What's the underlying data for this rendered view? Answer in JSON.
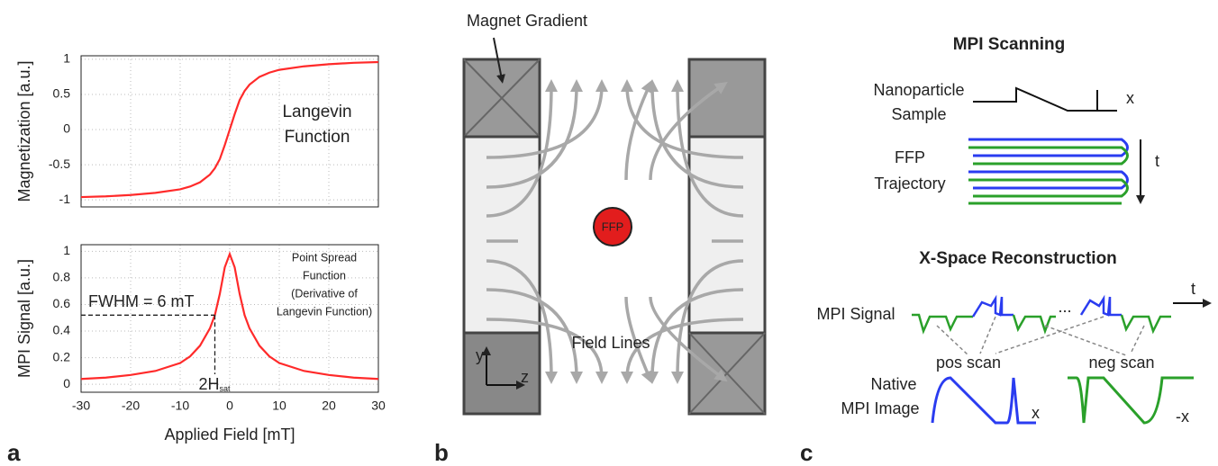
{
  "panel_labels": [
    "a",
    "b",
    "c"
  ],
  "chart_data": [
    {
      "type": "line",
      "ylabel": "Magnetization [a.u.]",
      "annotation": [
        "Langevin",
        "Function"
      ],
      "x": [
        -30,
        -25,
        -20,
        -15,
        -10,
        -8,
        -6,
        -4,
        -3,
        -2,
        -1,
        0,
        1,
        2,
        3,
        4,
        6,
        8,
        10,
        15,
        20,
        25,
        30
      ],
      "values": [
        -0.96,
        -0.95,
        -0.93,
        -0.9,
        -0.85,
        -0.81,
        -0.75,
        -0.64,
        -0.55,
        -0.42,
        -0.22,
        0,
        0.22,
        0.42,
        0.55,
        0.64,
        0.75,
        0.81,
        0.85,
        0.9,
        0.93,
        0.95,
        0.96
      ],
      "color": "#ff2a2a",
      "xlim": [
        -30,
        30
      ],
      "ylim": [
        -1.1,
        1.05
      ],
      "yticks": [
        -1,
        -0.5,
        0,
        0.5,
        1
      ],
      "grid": true
    },
    {
      "type": "line",
      "ylabel": "MPI Signal [a.u.]",
      "xlabel": "Applied Field [mT]",
      "annotation": [
        "Point Spread",
        "Function",
        "(Derivative of",
        "Langevin Function)"
      ],
      "fwhm_label": "FWHM = 6 mT",
      "hsat_label": "2H",
      "hsat_sub": "sat",
      "x": [
        -30,
        -25,
        -20,
        -15,
        -10,
        -8,
        -6,
        -4,
        -3,
        -2,
        -1,
        0,
        1,
        2,
        3,
        4,
        6,
        8,
        10,
        15,
        20,
        25,
        30
      ],
      "values": [
        0.04,
        0.05,
        0.07,
        0.1,
        0.16,
        0.21,
        0.29,
        0.42,
        0.52,
        0.68,
        0.88,
        0.98,
        0.88,
        0.68,
        0.52,
        0.42,
        0.29,
        0.21,
        0.16,
        0.1,
        0.07,
        0.05,
        0.04
      ],
      "color": "#ff2a2a",
      "xlim": [
        -30,
        30
      ],
      "ylim": [
        -0.06,
        1.05
      ],
      "yticks": [
        0,
        0.2,
        0.4,
        0.6,
        0.8,
        1
      ],
      "xticks": [
        -30,
        -20,
        -10,
        0,
        10,
        20,
        30
      ],
      "grid": true
    }
  ],
  "panel_b": {
    "magnet_label": "Magnet Gradient",
    "ffp": "FFP",
    "field_lines": "Field Lines",
    "axis_y": "y",
    "axis_z": "z"
  },
  "panel_c": {
    "scan_title": "MPI Scanning",
    "sample_label": [
      "Nanoparticle",
      "Sample"
    ],
    "sample_axis": "x",
    "trajectory_label": [
      "FFP",
      "Trajectory"
    ],
    "time_axis": "t",
    "recon_title": "X-Space Reconstruction",
    "signal_label": "MPI Signal",
    "ellipsis": "...",
    "signal_time": "t",
    "pos_scan": "pos scan",
    "neg_scan": "neg scan",
    "image_label": [
      "Native",
      "MPI Image"
    ],
    "pos_axis": "x",
    "neg_axis": "-x"
  }
}
